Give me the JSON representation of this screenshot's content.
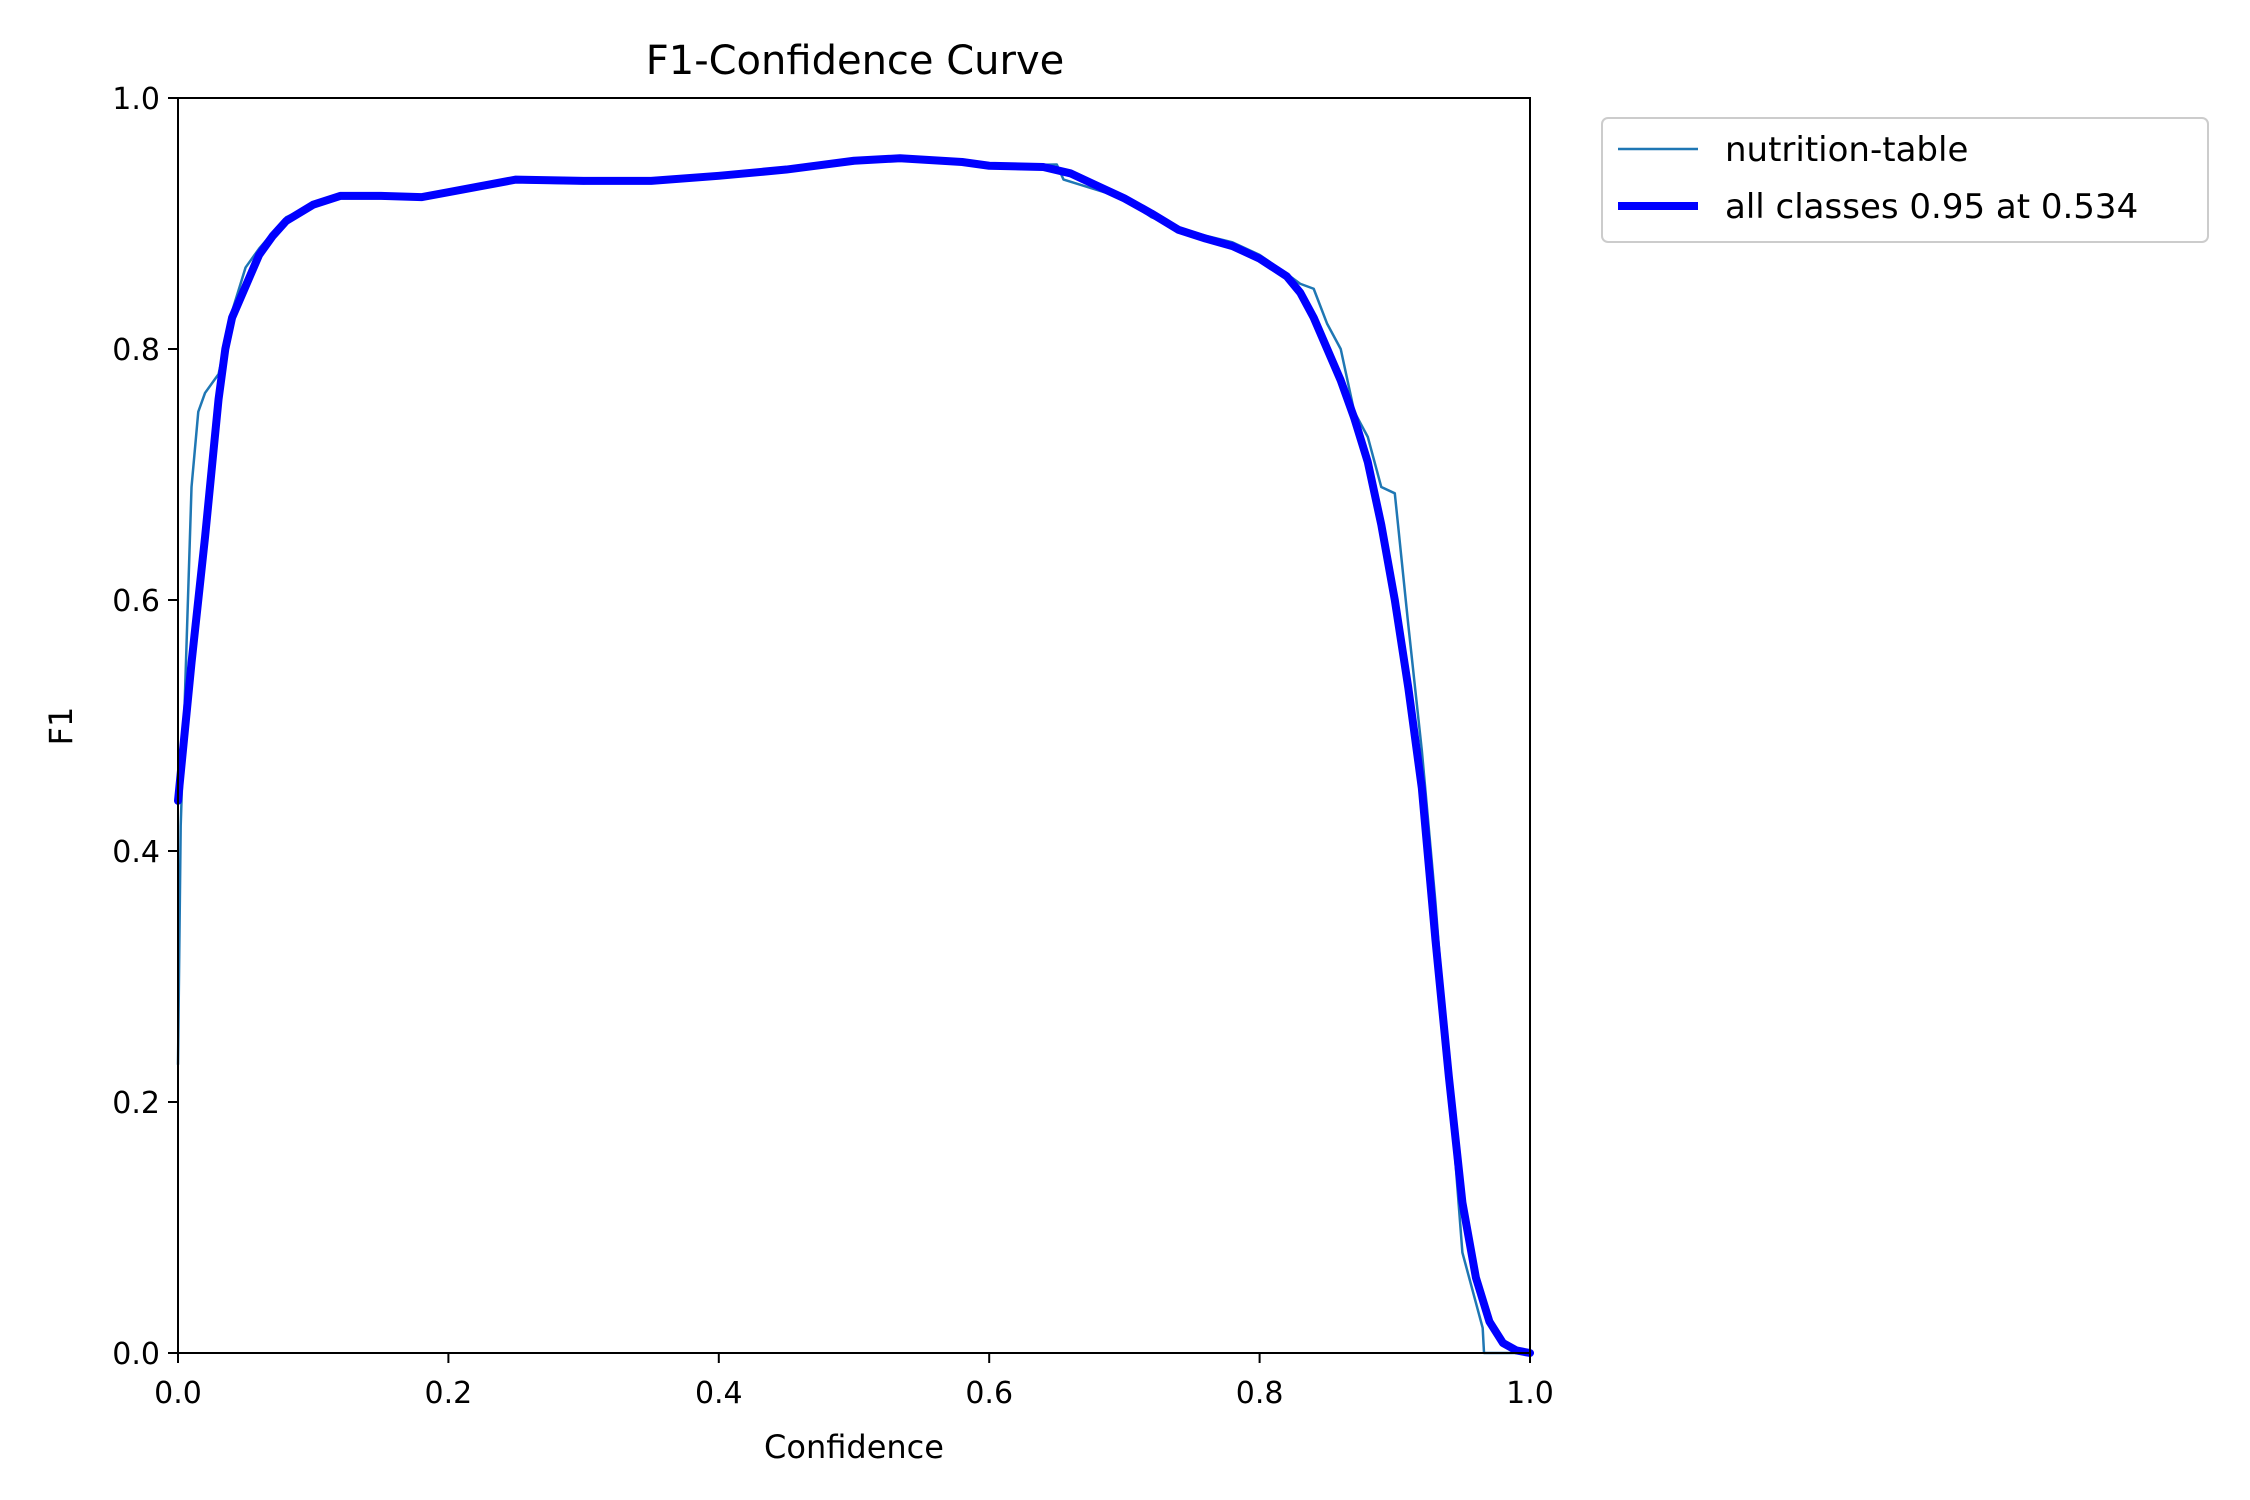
{
  "chart_data": {
    "type": "line",
    "title": "F1-Confidence Curve",
    "xlabel": "Confidence",
    "ylabel": "F1",
    "xlim": [
      0,
      1
    ],
    "ylim": [
      0,
      1
    ],
    "x_ticks": [
      "0.0",
      "0.2",
      "0.4",
      "0.6",
      "0.8",
      "1.0"
    ],
    "y_ticks": [
      "0.0",
      "0.2",
      "0.4",
      "0.6",
      "0.8",
      "1.0"
    ],
    "grid": false,
    "legend_position": "outside-top-right",
    "series": [
      {
        "name": "nutrition-table",
        "color": "#1f77b4",
        "points": [
          [
            0.0,
            0.23
          ],
          [
            0.002,
            0.42
          ],
          [
            0.005,
            0.52
          ],
          [
            0.01,
            0.69
          ],
          [
            0.015,
            0.75
          ],
          [
            0.02,
            0.765
          ],
          [
            0.03,
            0.78
          ],
          [
            0.04,
            0.83
          ],
          [
            0.05,
            0.865
          ],
          [
            0.06,
            0.88
          ],
          [
            0.08,
            0.905
          ],
          [
            0.1,
            0.915
          ],
          [
            0.12,
            0.92
          ],
          [
            0.15,
            0.92
          ],
          [
            0.18,
            0.92
          ],
          [
            0.2,
            0.925
          ],
          [
            0.25,
            0.933
          ],
          [
            0.3,
            0.932
          ],
          [
            0.35,
            0.935
          ],
          [
            0.4,
            0.938
          ],
          [
            0.45,
            0.942
          ],
          [
            0.5,
            0.948
          ],
          [
            0.534,
            0.952
          ],
          [
            0.55,
            0.951
          ],
          [
            0.6,
            0.946
          ],
          [
            0.65,
            0.947
          ],
          [
            0.655,
            0.935
          ],
          [
            0.7,
            0.92
          ],
          [
            0.72,
            0.905
          ],
          [
            0.75,
            0.893
          ],
          [
            0.78,
            0.885
          ],
          [
            0.8,
            0.875
          ],
          [
            0.82,
            0.86
          ],
          [
            0.83,
            0.852
          ],
          [
            0.84,
            0.848
          ],
          [
            0.85,
            0.82
          ],
          [
            0.86,
            0.8
          ],
          [
            0.87,
            0.75
          ],
          [
            0.88,
            0.73
          ],
          [
            0.89,
            0.69
          ],
          [
            0.9,
            0.685
          ],
          [
            0.91,
            0.58
          ],
          [
            0.92,
            0.48
          ],
          [
            0.93,
            0.36
          ],
          [
            0.94,
            0.22
          ],
          [
            0.95,
            0.08
          ],
          [
            0.955,
            0.06
          ],
          [
            0.96,
            0.04
          ],
          [
            0.965,
            0.02
          ],
          [
            0.966,
            0.0
          ],
          [
            1.0,
            0.0
          ]
        ]
      },
      {
        "name": "all classes 0.95 at 0.534",
        "color": "#0000ff",
        "points": [
          [
            0.0,
            0.44
          ],
          [
            0.01,
            0.55
          ],
          [
            0.02,
            0.65
          ],
          [
            0.03,
            0.76
          ],
          [
            0.035,
            0.8
          ],
          [
            0.04,
            0.825
          ],
          [
            0.05,
            0.85
          ],
          [
            0.06,
            0.875
          ],
          [
            0.07,
            0.89
          ],
          [
            0.08,
            0.902
          ],
          [
            0.1,
            0.915
          ],
          [
            0.12,
            0.922
          ],
          [
            0.15,
            0.922
          ],
          [
            0.18,
            0.921
          ],
          [
            0.2,
            0.925
          ],
          [
            0.25,
            0.935
          ],
          [
            0.3,
            0.934
          ],
          [
            0.35,
            0.934
          ],
          [
            0.4,
            0.938
          ],
          [
            0.45,
            0.943
          ],
          [
            0.5,
            0.95
          ],
          [
            0.534,
            0.952
          ],
          [
            0.58,
            0.949
          ],
          [
            0.6,
            0.946
          ],
          [
            0.64,
            0.945
          ],
          [
            0.66,
            0.94
          ],
          [
            0.68,
            0.93
          ],
          [
            0.7,
            0.92
          ],
          [
            0.72,
            0.908
          ],
          [
            0.74,
            0.895
          ],
          [
            0.76,
            0.888
          ],
          [
            0.78,
            0.882
          ],
          [
            0.8,
            0.872
          ],
          [
            0.82,
            0.858
          ],
          [
            0.83,
            0.845
          ],
          [
            0.84,
            0.825
          ],
          [
            0.85,
            0.8
          ],
          [
            0.86,
            0.775
          ],
          [
            0.87,
            0.745
          ],
          [
            0.88,
            0.71
          ],
          [
            0.89,
            0.66
          ],
          [
            0.9,
            0.6
          ],
          [
            0.91,
            0.53
          ],
          [
            0.92,
            0.45
          ],
          [
            0.93,
            0.33
          ],
          [
            0.94,
            0.22
          ],
          [
            0.95,
            0.12
          ],
          [
            0.96,
            0.06
          ],
          [
            0.97,
            0.025
          ],
          [
            0.98,
            0.008
          ],
          [
            0.99,
            0.002
          ],
          [
            1.0,
            0.0
          ]
        ]
      }
    ]
  }
}
